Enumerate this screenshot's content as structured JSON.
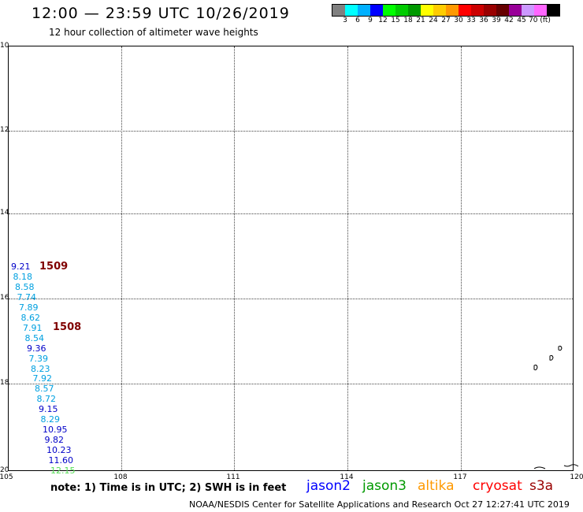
{
  "title": "12:00 — 23:59 UTC 10/26/2019",
  "subtitle": "12 hour collection of altimeter wave heights",
  "legend": {
    "colors": [
      "#808080",
      "#00ffff",
      "#00b0ff",
      "#0000ff",
      "#00ff00",
      "#00cc00",
      "#009900",
      "#ffff00",
      "#ffcc00",
      "#ff9900",
      "#ff0000",
      "#cc0000",
      "#990000",
      "#660000",
      "#990099",
      "#cc99ff",
      "#ff66ff",
      "#000000"
    ],
    "labels": [
      "3",
      "6",
      "9",
      "12",
      "15",
      "18",
      "21",
      "24",
      "27",
      "30",
      "33",
      "36",
      "39",
      "42",
      "45",
      "70 (ft)"
    ]
  },
  "map": {
    "lat_labels": [
      "10",
      "12",
      "14",
      "16",
      "18",
      "20"
    ],
    "lon_labels": [
      "105",
      "108",
      "111",
      "114",
      "117",
      "120"
    ],
    "swh_readings": [
      {
        "value": "9.21",
        "sat": "j2"
      },
      {
        "value": "8.18",
        "sat": "j3"
      },
      {
        "value": "8.58",
        "sat": "j3"
      },
      {
        "value": "7.74",
        "sat": "j3"
      },
      {
        "value": "7.89",
        "sat": "j3"
      },
      {
        "value": "8.62",
        "sat": "j3"
      },
      {
        "value": "7.91",
        "sat": "j3"
      },
      {
        "value": "8.54",
        "sat": "j3"
      },
      {
        "value": "9.36",
        "sat": "j2"
      },
      {
        "value": "7.39",
        "sat": "j3"
      },
      {
        "value": "8.23",
        "sat": "j3"
      },
      {
        "value": "7.92",
        "sat": "j3"
      },
      {
        "value": "8.57",
        "sat": "j3"
      },
      {
        "value": "8.72",
        "sat": "j3"
      },
      {
        "value": "9.15",
        "sat": "j2"
      },
      {
        "value": "8.29",
        "sat": "j3"
      },
      {
        "value": "10.95",
        "sat": "j2"
      },
      {
        "value": "9.82",
        "sat": "j2"
      },
      {
        "value": "10.23",
        "sat": "j2"
      },
      {
        "value": "11.60",
        "sat": "j2"
      },
      {
        "value": "12.15",
        "sat": "alt"
      }
    ],
    "time_labels": [
      "1509",
      "1508"
    ]
  },
  "note": "note:  1) Time is in UTC; 2) SWH is in feet",
  "satellites": [
    {
      "name": "jason2",
      "color": "#0000ff"
    },
    {
      "name": "jason3",
      "color": "#009900"
    },
    {
      "name": "altika",
      "color": "#ff9900"
    },
    {
      "name": "cryosat",
      "color": "#ff0000"
    },
    {
      "name": "s3a",
      "color": "#990000"
    }
  ],
  "credit": "NOAA/NESDIS Center for Satellite Applications and Research    Oct 27 12:27:41 UTC 2019"
}
